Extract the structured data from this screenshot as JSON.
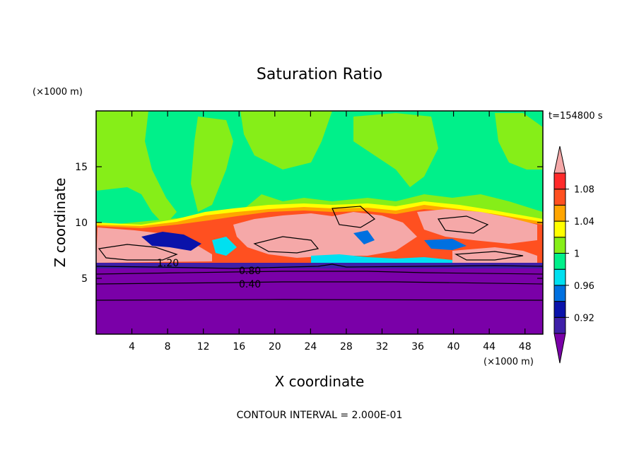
{
  "chart_data": {
    "type": "heatmap",
    "title": "Saturation Ratio",
    "xlabel": "X coordinate",
    "ylabel": "Z coordinate",
    "x_unit": "(×1000 m)",
    "y_unit": "(×1000 m)",
    "time_label": "t=154800 s",
    "footer": "CONTOUR INTERVAL = 2.000E-01",
    "xlim": [
      0,
      50
    ],
    "ylim": [
      0,
      20
    ],
    "x_ticks": [
      4,
      8,
      12,
      16,
      20,
      24,
      28,
      32,
      36,
      40,
      44,
      48
    ],
    "y_ticks": [
      5,
      10,
      15
    ],
    "colorbar": {
      "labels": [
        "1.08",
        "1.04",
        "1",
        "0.96",
        "0.92"
      ],
      "levels": [
        0.9,
        0.92,
        0.94,
        0.96,
        0.98,
        1.0,
        1.02,
        1.04,
        1.06,
        1.08,
        1.1
      ],
      "colors": [
        "#7a00a8",
        "#3e1fa8",
        "#0a12aa",
        "#0070e0",
        "#00e0f0",
        "#00f08a",
        "#86ee18",
        "#ffff00",
        "#ffa500",
        "#ff5020",
        "#ff2a2a",
        "#f5a8a8"
      ]
    },
    "contour_labels": [
      {
        "text": "1.20",
        "x": 8.5,
        "y": 6.5
      },
      {
        "text": "0.80",
        "x": 17.5,
        "y": 5.7
      },
      {
        "text": "0.40",
        "x": 17.5,
        "y": 4.5
      }
    ],
    "grid": false
  }
}
